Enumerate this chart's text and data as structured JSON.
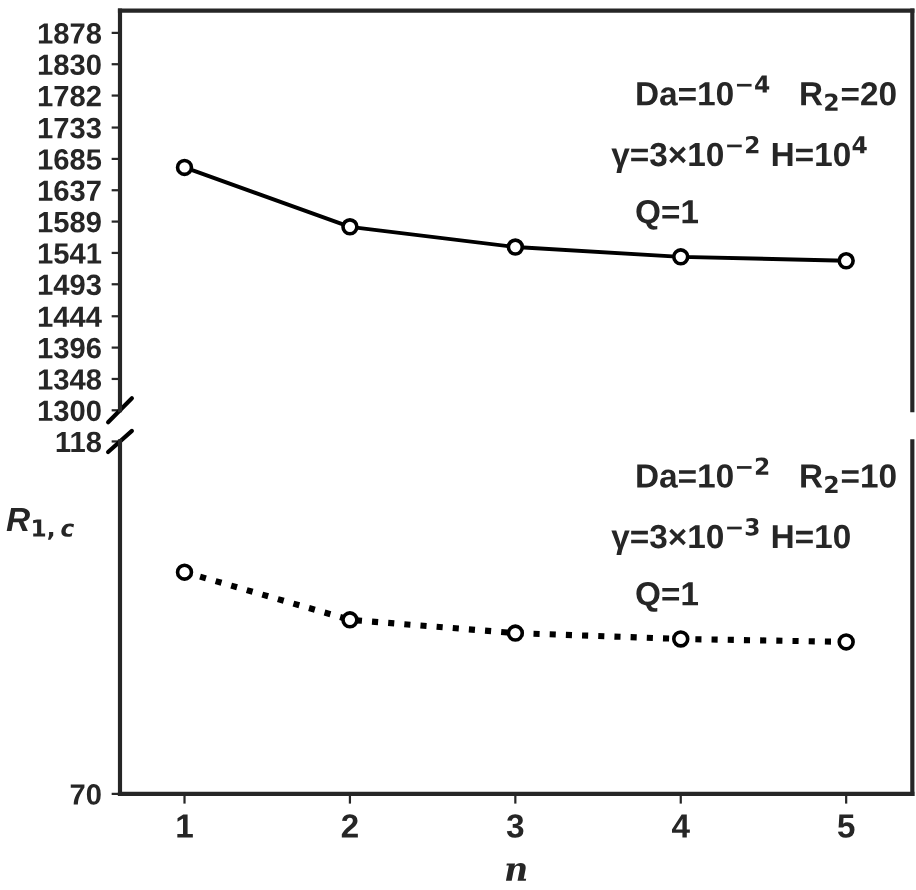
{
  "chart_data": [
    {
      "type": "line",
      "x": [
        1,
        2,
        3,
        4,
        5
      ],
      "xlim": [
        0.61,
        5.4
      ],
      "xticks": [
        1,
        2,
        3,
        4,
        5
      ],
      "ylim": [
        1300,
        1912
      ],
      "yticks": [
        1300,
        1348,
        1396,
        1444,
        1493,
        1541,
        1589,
        1637,
        1685,
        1733,
        1782,
        1830,
        1878
      ],
      "tick_labels": "y",
      "marker": "circle",
      "series": [
        {
          "color": "#000000",
          "line_style": "solid",
          "values": [
            1672,
            1581,
            1550,
            1535,
            1529
          ]
        }
      ],
      "annotations": [
        "Da=10$^{−4}$   R$_{2}$=20",
        "γ=3×10$^{−2}$ H=10$^{4}$",
        "Q=1"
      ]
    },
    {
      "type": "line",
      "x": [
        1,
        2,
        3,
        4,
        5
      ],
      "xlim": [
        0.61,
        5.4
      ],
      "xticks": [
        1,
        2,
        3,
        4,
        5
      ],
      "ylim": [
        70,
        118
      ],
      "yticks": [
        70,
        118
      ],
      "xlabel": "n",
      "ylabel": "R$_{1,c}$",
      "marker": "circle",
      "series": [
        {
          "color": "#000000",
          "line_style": "dotted",
          "values": [
            100.2,
            93.7,
            91.9,
            91.1,
            90.7
          ]
        }
      ],
      "annotations": [
        "Da=10$^{−2}$   R$_{2}$=10",
        "γ=3×10$^{−3}$ H=10",
        "Q=1"
      ]
    }
  ]
}
